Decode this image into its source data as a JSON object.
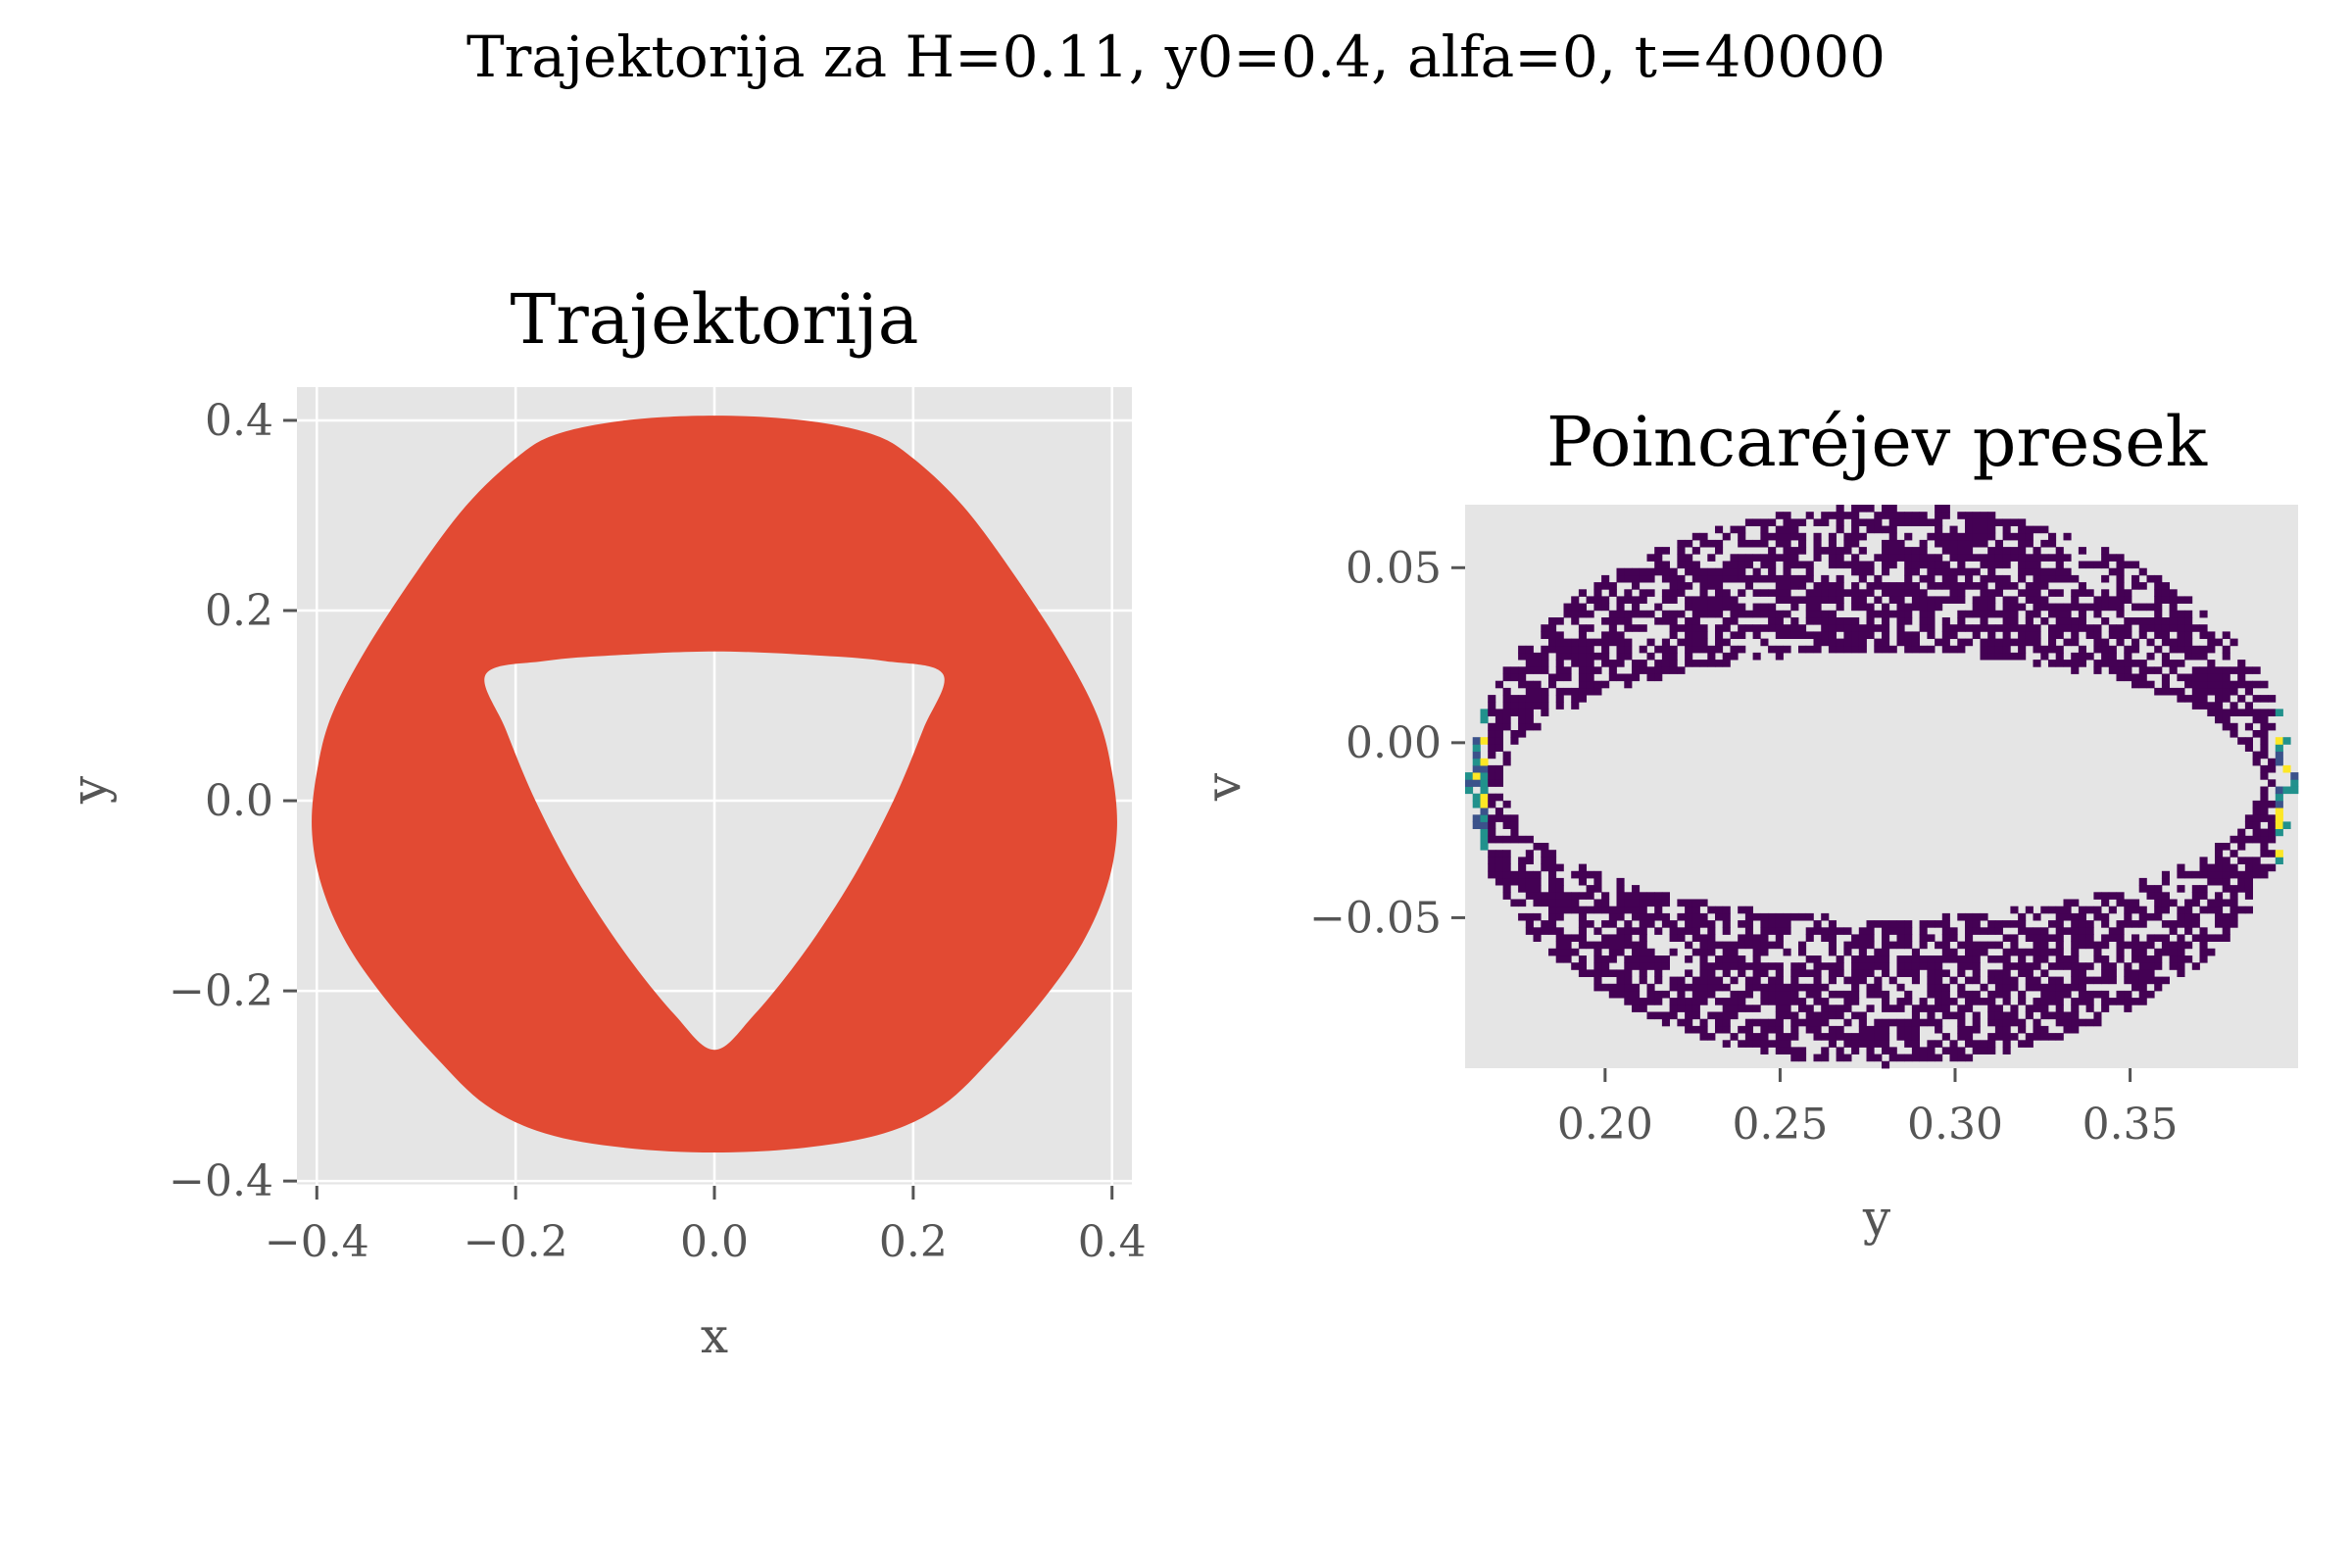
{
  "suptitle": "Trajektorija za H=0.11, y0=0.4, alfa=0, t=40000",
  "colors": {
    "background": "#ffffff",
    "panel": "#e5e5e5",
    "grid": "#ffffff",
    "trajectory": "#e24a33",
    "text": "#555555",
    "density_low": "#440154",
    "density_mid": "#21918c",
    "density_high": "#fde725"
  },
  "chart_data": [
    {
      "type": "area",
      "title": "Trajektorija",
      "xlabel": "x",
      "ylabel": "y",
      "xlim": [
        -0.42,
        0.42
      ],
      "ylim": [
        -0.405,
        0.435
      ],
      "xticks": [
        -0.4,
        -0.2,
        0.0,
        0.2,
        0.4
      ],
      "xtick_labels": [
        "−0.4",
        "−0.2",
        "0.0",
        "0.2",
        "0.4"
      ],
      "yticks": [
        -0.4,
        -0.2,
        0.0,
        0.2,
        0.4
      ],
      "ytick_labels": [
        "−0.4",
        "−0.2",
        "0.0",
        "0.2",
        "0.4"
      ],
      "grid": true,
      "outer_boundary": [
        [
          0.0,
          0.405
        ],
        [
          0.09,
          0.4
        ],
        [
          0.16,
          0.385
        ],
        [
          0.2,
          0.36
        ],
        [
          0.25,
          0.31
        ],
        [
          0.3,
          0.24
        ],
        [
          0.35,
          0.16
        ],
        [
          0.385,
          0.09
        ],
        [
          0.4,
          0.03
        ],
        [
          0.405,
          -0.03
        ],
        [
          0.395,
          -0.09
        ],
        [
          0.37,
          -0.15
        ],
        [
          0.33,
          -0.21
        ],
        [
          0.28,
          -0.27
        ],
        [
          0.23,
          -0.32
        ],
        [
          0.17,
          -0.35
        ],
        [
          0.09,
          -0.365
        ],
        [
          0.0,
          -0.37
        ],
        [
          -0.09,
          -0.365
        ],
        [
          -0.17,
          -0.35
        ],
        [
          -0.23,
          -0.32
        ],
        [
          -0.28,
          -0.27
        ],
        [
          -0.33,
          -0.21
        ],
        [
          -0.37,
          -0.15
        ],
        [
          -0.395,
          -0.09
        ],
        [
          -0.405,
          -0.03
        ],
        [
          -0.4,
          0.03
        ],
        [
          -0.385,
          0.09
        ],
        [
          -0.35,
          0.16
        ],
        [
          -0.3,
          0.24
        ],
        [
          -0.25,
          0.31
        ],
        [
          -0.2,
          0.36
        ],
        [
          -0.16,
          0.385
        ],
        [
          -0.09,
          0.4
        ]
      ],
      "inner_boundary": [
        [
          0.0,
          0.157
        ],
        [
          0.1,
          0.153
        ],
        [
          0.17,
          0.147
        ],
        [
          0.23,
          0.133
        ],
        [
          0.21,
          0.075
        ],
        [
          0.18,
          0.0
        ],
        [
          0.14,
          -0.08
        ],
        [
          0.09,
          -0.16
        ],
        [
          0.04,
          -0.225
        ],
        [
          0.0,
          -0.262
        ],
        [
          -0.04,
          -0.225
        ],
        [
          -0.09,
          -0.16
        ],
        [
          -0.14,
          -0.08
        ],
        [
          -0.18,
          0.0
        ],
        [
          -0.21,
          0.075
        ],
        [
          -0.23,
          0.133
        ],
        [
          -0.17,
          0.147
        ],
        [
          -0.1,
          0.153
        ]
      ]
    },
    {
      "type": "heatmap",
      "title": "Poincaréjev presek",
      "xlabel": "y",
      "ylabel": "v",
      "xlim": [
        0.16,
        0.398
      ],
      "ylim": [
        -0.093,
        0.068
      ],
      "xticks": [
        0.2,
        0.25,
        0.3,
        0.35
      ],
      "xtick_labels": [
        "0.20",
        "0.25",
        "0.30",
        "0.35"
      ],
      "yticks": [
        0.05,
        0.0,
        -0.05
      ],
      "ytick_labels": [
        "0.05",
        "0.00",
        "−0.05"
      ],
      "grid": false,
      "ring": {
        "center": [
          0.279,
          -0.012
        ],
        "outer_radius": [
          0.118,
          0.08
        ],
        "inner_radius": [
          0.108,
          0.038
        ]
      },
      "colormap": "viridis",
      "bins": [
        110,
        80
      ],
      "note_dense_edges": [
        0.163,
        0.396
      ]
    }
  ]
}
